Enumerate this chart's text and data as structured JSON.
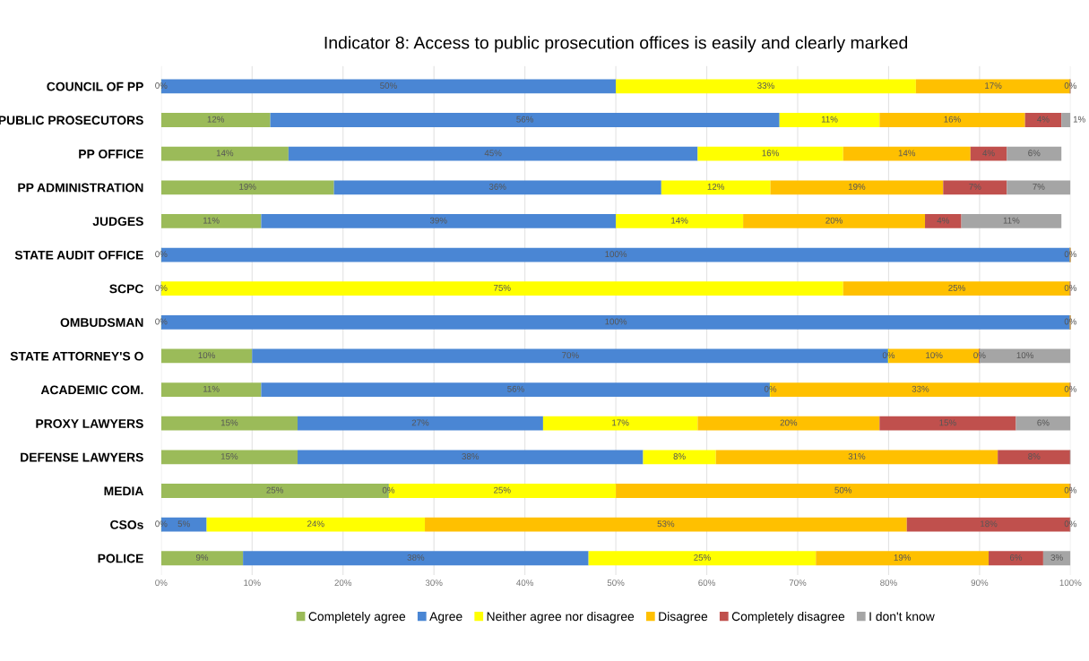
{
  "chart_data": {
    "type": "bar",
    "orientation": "horizontal",
    "stacked": true,
    "title": "Indicator 8: Access to public prosecution offices is easily and clearly marked",
    "categories": [
      "COUNCIL OF PP",
      "PUBLIC PROSECUTORS",
      "PP OFFICE",
      "PP ADMINISTRATION",
      "JUDGES",
      "STATE AUDIT OFFICE",
      "SCPC",
      "OMBUDSMAN",
      "STATE ATTORNEY'S O",
      "ACADEMIC COM.",
      "PROXY LAWYERS",
      "DEFENSE LAWYERS",
      "MEDIA",
      "CSOs",
      "POLICE"
    ],
    "series": [
      {
        "name": "Completely agree",
        "color": "#9bbb59",
        "values": [
          0,
          12,
          14,
          19,
          11,
          0,
          0,
          0,
          10,
          11,
          15,
          15,
          25,
          0,
          9
        ],
        "value_labels": [
          "0%",
          "12%",
          "14%",
          "19%",
          "11%",
          "0%",
          "0%",
          "0%",
          "10%",
          "11%",
          "15%",
          "15%",
          "25%",
          "0%",
          "9%"
        ]
      },
      {
        "name": "Agree",
        "color": "#4a86d4",
        "values": [
          50,
          56,
          45,
          36,
          39,
          100,
          0,
          100,
          70,
          56,
          27,
          38,
          0,
          5,
          38
        ],
        "value_labels": [
          "50%",
          "56%",
          "45%",
          "36%",
          "39%",
          "100%",
          null,
          "100%",
          "70%",
          "56%",
          "27%",
          "38%",
          "0%",
          "5%",
          "38%"
        ]
      },
      {
        "name": "Neither agree nor disagree",
        "color": "#ffff00",
        "values": [
          33,
          11,
          16,
          12,
          14,
          0,
          75,
          0,
          0,
          0,
          17,
          8,
          25,
          24,
          25
        ],
        "value_labels": [
          "33%",
          "11%",
          "16%",
          "12%",
          "14%",
          null,
          "75%",
          null,
          "0%",
          "0%",
          "17%",
          "8%",
          "25%",
          "24%",
          "25%"
        ]
      },
      {
        "name": "Disagree",
        "color": "#ffc000",
        "values": [
          17,
          16,
          14,
          19,
          20,
          0,
          25,
          0,
          10,
          33,
          20,
          31,
          50,
          53,
          19
        ],
        "value_labels": [
          "17%",
          "16%",
          "14%",
          "19%",
          "20%",
          null,
          "25%",
          null,
          "10%",
          "33%",
          "20%",
          "31%",
          "50%",
          "53%",
          "19%"
        ]
      },
      {
        "name": "Completely disagree",
        "color": "#c0504d",
        "values": [
          0,
          4,
          4,
          7,
          4,
          0,
          0,
          0,
          0,
          0,
          15,
          8,
          0,
          18,
          6
        ],
        "value_labels": [
          "0%",
          "4%",
          "4%",
          "7%",
          "4%",
          "0%",
          "0%",
          "0%",
          "0%",
          "0%",
          "15%",
          "8%",
          "0%",
          "18%",
          "6%"
        ]
      },
      {
        "name": "I don't know",
        "color": "#a5a5a5",
        "values": [
          0,
          1,
          6,
          7,
          11,
          0,
          0,
          0,
          10,
          0,
          6,
          0,
          0,
          0,
          3
        ],
        "value_labels": [
          null,
          "1%",
          "6%",
          "7%",
          "11%",
          null,
          null,
          null,
          "10%",
          null,
          "6%",
          null,
          null,
          "0%",
          "3%"
        ]
      }
    ],
    "xlim": [
      0,
      100
    ],
    "xticks": [
      {
        "value": 0,
        "label": "0%"
      },
      {
        "value": 10,
        "label": "10%"
      },
      {
        "value": 20,
        "label": "20%"
      },
      {
        "value": 30,
        "label": "30%"
      },
      {
        "value": 40,
        "label": "40%"
      },
      {
        "value": 50,
        "label": "50%"
      },
      {
        "value": 60,
        "label": "60%"
      },
      {
        "value": 70,
        "label": "70%"
      },
      {
        "value": 80,
        "label": "80%"
      },
      {
        "value": 90,
        "label": "90%"
      },
      {
        "value": 100,
        "label": "100%"
      }
    ],
    "grid": "x",
    "legend": "bottom"
  }
}
